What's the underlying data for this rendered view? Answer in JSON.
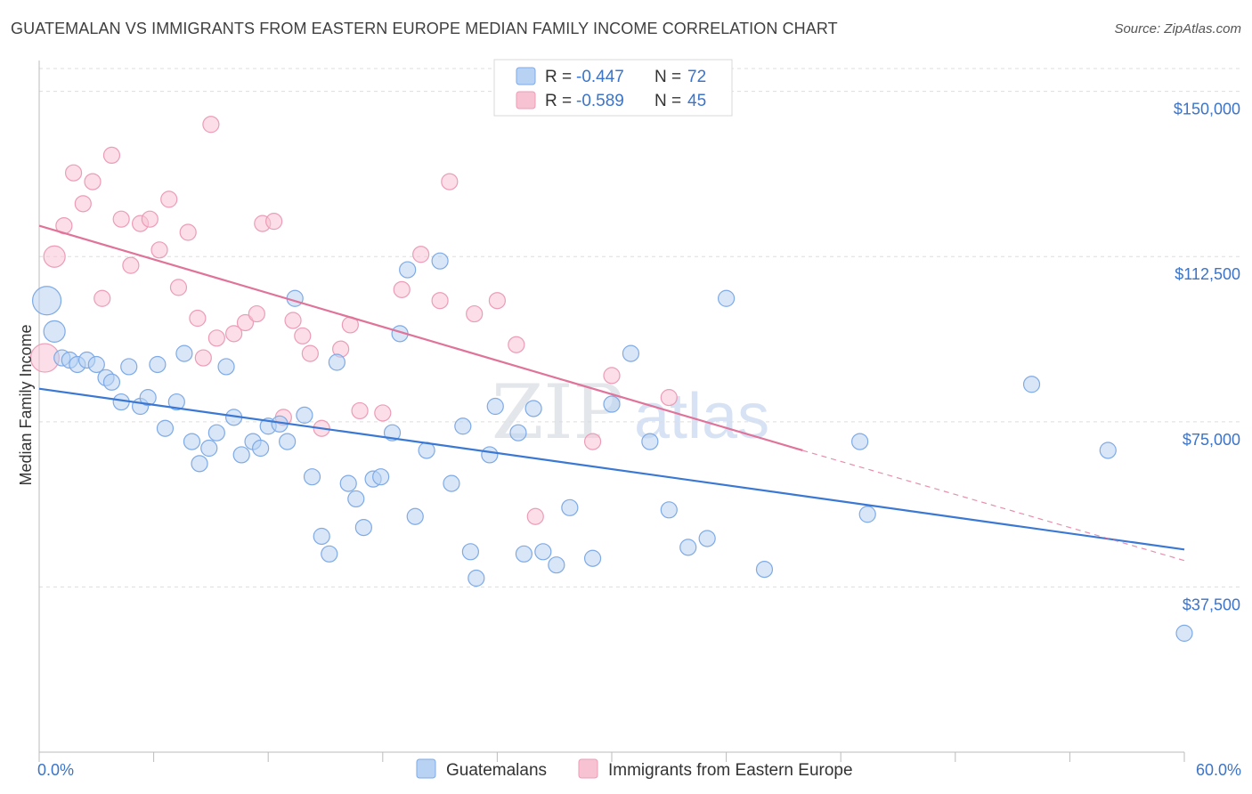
{
  "header": {
    "title": "GUATEMALAN VS IMMIGRANTS FROM EASTERN EUROPE MEDIAN FAMILY INCOME CORRELATION CHART",
    "source": "Source: ZipAtlas.com"
  },
  "watermark": {
    "zip": "ZIP",
    "atlas": "atlas"
  },
  "colors": {
    "blue": "#3a78d4",
    "blue_fill": "#b8d2f3",
    "pink": "#e0739a",
    "pink_fill": "#f7c3d3",
    "tick": "#3b74c8",
    "grid": "#dddddd"
  },
  "chart_data": {
    "type": "scatter",
    "title": "GUATEMALAN VS IMMIGRANTS FROM EASTERN EUROPE MEDIAN FAMILY INCOME CORRELATION CHART",
    "xlabel": "",
    "ylabel": "Median Family Income",
    "xlim": [
      0,
      60
    ],
    "ylim": [
      0,
      157000
    ],
    "x_tick_labels": [
      "0.0%",
      "60.0%"
    ],
    "y_ticks": [
      37500,
      75000,
      112500,
      150000
    ],
    "y_tick_labels": [
      "$37,500",
      "$75,000",
      "$112,500",
      "$150,000"
    ],
    "grid": true,
    "legend": {
      "placement": "top-center",
      "entries": [
        {
          "r_label": "R =",
          "r_value": "-0.447",
          "n_label": "N =",
          "n_value": "72"
        },
        {
          "r_label": "R =",
          "r_value": "-0.589",
          "n_label": "N =",
          "n_value": "45"
        }
      ]
    },
    "series": [
      {
        "name": "Guatemalans",
        "color": "#3a78d4",
        "trend": {
          "x": [
            0,
            60
          ],
          "y": [
            82500,
            46000
          ]
        },
        "points": [
          [
            0.4,
            102500
          ],
          [
            0.8,
            95500
          ],
          [
            1.2,
            89500
          ],
          [
            1.6,
            89000
          ],
          [
            2.0,
            88000
          ],
          [
            2.5,
            89000
          ],
          [
            3.0,
            88000
          ],
          [
            3.5,
            85000
          ],
          [
            3.8,
            84000
          ],
          [
            4.3,
            79500
          ],
          [
            4.7,
            87500
          ],
          [
            5.3,
            78500
          ],
          [
            5.7,
            80500
          ],
          [
            6.2,
            88000
          ],
          [
            6.6,
            73500
          ],
          [
            7.2,
            79500
          ],
          [
            7.6,
            90500
          ],
          [
            8.0,
            70500
          ],
          [
            8.4,
            65500
          ],
          [
            8.9,
            69000
          ],
          [
            9.3,
            72500
          ],
          [
            9.8,
            87500
          ],
          [
            10.2,
            76000
          ],
          [
            10.6,
            67500
          ],
          [
            11.2,
            70500
          ],
          [
            11.6,
            69000
          ],
          [
            12.0,
            74000
          ],
          [
            12.6,
            74500
          ],
          [
            13.0,
            70500
          ],
          [
            13.4,
            103000
          ],
          [
            13.9,
            76500
          ],
          [
            14.3,
            62500
          ],
          [
            14.8,
            49000
          ],
          [
            15.2,
            45000
          ],
          [
            15.6,
            88500
          ],
          [
            16.2,
            61000
          ],
          [
            16.6,
            57500
          ],
          [
            17.0,
            51000
          ],
          [
            17.5,
            62000
          ],
          [
            17.9,
            62500
          ],
          [
            18.5,
            72500
          ],
          [
            18.9,
            95000
          ],
          [
            19.3,
            109500
          ],
          [
            19.7,
            53500
          ],
          [
            20.3,
            68500
          ],
          [
            21.0,
            111500
          ],
          [
            21.6,
            61000
          ],
          [
            22.2,
            74000
          ],
          [
            22.6,
            45500
          ],
          [
            22.9,
            39500
          ],
          [
            23.6,
            67500
          ],
          [
            23.9,
            78500
          ],
          [
            25.1,
            72500
          ],
          [
            25.4,
            45000
          ],
          [
            25.9,
            78000
          ],
          [
            26.4,
            45500
          ],
          [
            27.1,
            42500
          ],
          [
            27.8,
            55500
          ],
          [
            29.0,
            44000
          ],
          [
            30.0,
            79000
          ],
          [
            31.0,
            90500
          ],
          [
            32.0,
            70500
          ],
          [
            33.0,
            55000
          ],
          [
            34.0,
            46500
          ],
          [
            35.0,
            48500
          ],
          [
            36.0,
            103000
          ],
          [
            38.0,
            41500
          ],
          [
            43.0,
            70500
          ],
          [
            43.4,
            54000
          ],
          [
            52.0,
            83500
          ],
          [
            56.0,
            68500
          ],
          [
            60.0,
            27000
          ]
        ]
      },
      {
        "name": "Immigrants from Eastern Europe",
        "color": "#e0739a",
        "trend": {
          "x": [
            0,
            40
          ],
          "y": [
            119500,
            68500
          ]
        },
        "trend_dashed": {
          "x": [
            40,
            60
          ],
          "y": [
            68500,
            43500
          ]
        },
        "points": [
          [
            0.3,
            89500
          ],
          [
            0.8,
            112500
          ],
          [
            1.3,
            119500
          ],
          [
            1.8,
            131500
          ],
          [
            2.3,
            124500
          ],
          [
            2.8,
            129500
          ],
          [
            3.3,
            103000
          ],
          [
            3.8,
            135500
          ],
          [
            4.3,
            121000
          ],
          [
            4.8,
            110500
          ],
          [
            5.3,
            120000
          ],
          [
            5.8,
            121000
          ],
          [
            6.3,
            114000
          ],
          [
            6.8,
            125500
          ],
          [
            7.3,
            105500
          ],
          [
            7.8,
            118000
          ],
          [
            8.3,
            98500
          ],
          [
            8.6,
            89500
          ],
          [
            9.0,
            142500
          ],
          [
            9.3,
            94000
          ],
          [
            10.2,
            95000
          ],
          [
            10.8,
            97500
          ],
          [
            11.4,
            99500
          ],
          [
            11.7,
            120000
          ],
          [
            12.3,
            120500
          ],
          [
            12.8,
            76000
          ],
          [
            13.3,
            98000
          ],
          [
            13.8,
            94500
          ],
          [
            14.2,
            90500
          ],
          [
            14.8,
            73500
          ],
          [
            15.8,
            91500
          ],
          [
            16.3,
            97000
          ],
          [
            16.8,
            77500
          ],
          [
            18.0,
            77000
          ],
          [
            19.0,
            105000
          ],
          [
            20.0,
            113000
          ],
          [
            21.0,
            102500
          ],
          [
            21.5,
            129500
          ],
          [
            22.8,
            99500
          ],
          [
            24.0,
            102500
          ],
          [
            25.0,
            92500
          ],
          [
            26.0,
            53500
          ],
          [
            29.0,
            70500
          ],
          [
            30.0,
            85500
          ],
          [
            33.0,
            80500
          ]
        ]
      }
    ]
  }
}
